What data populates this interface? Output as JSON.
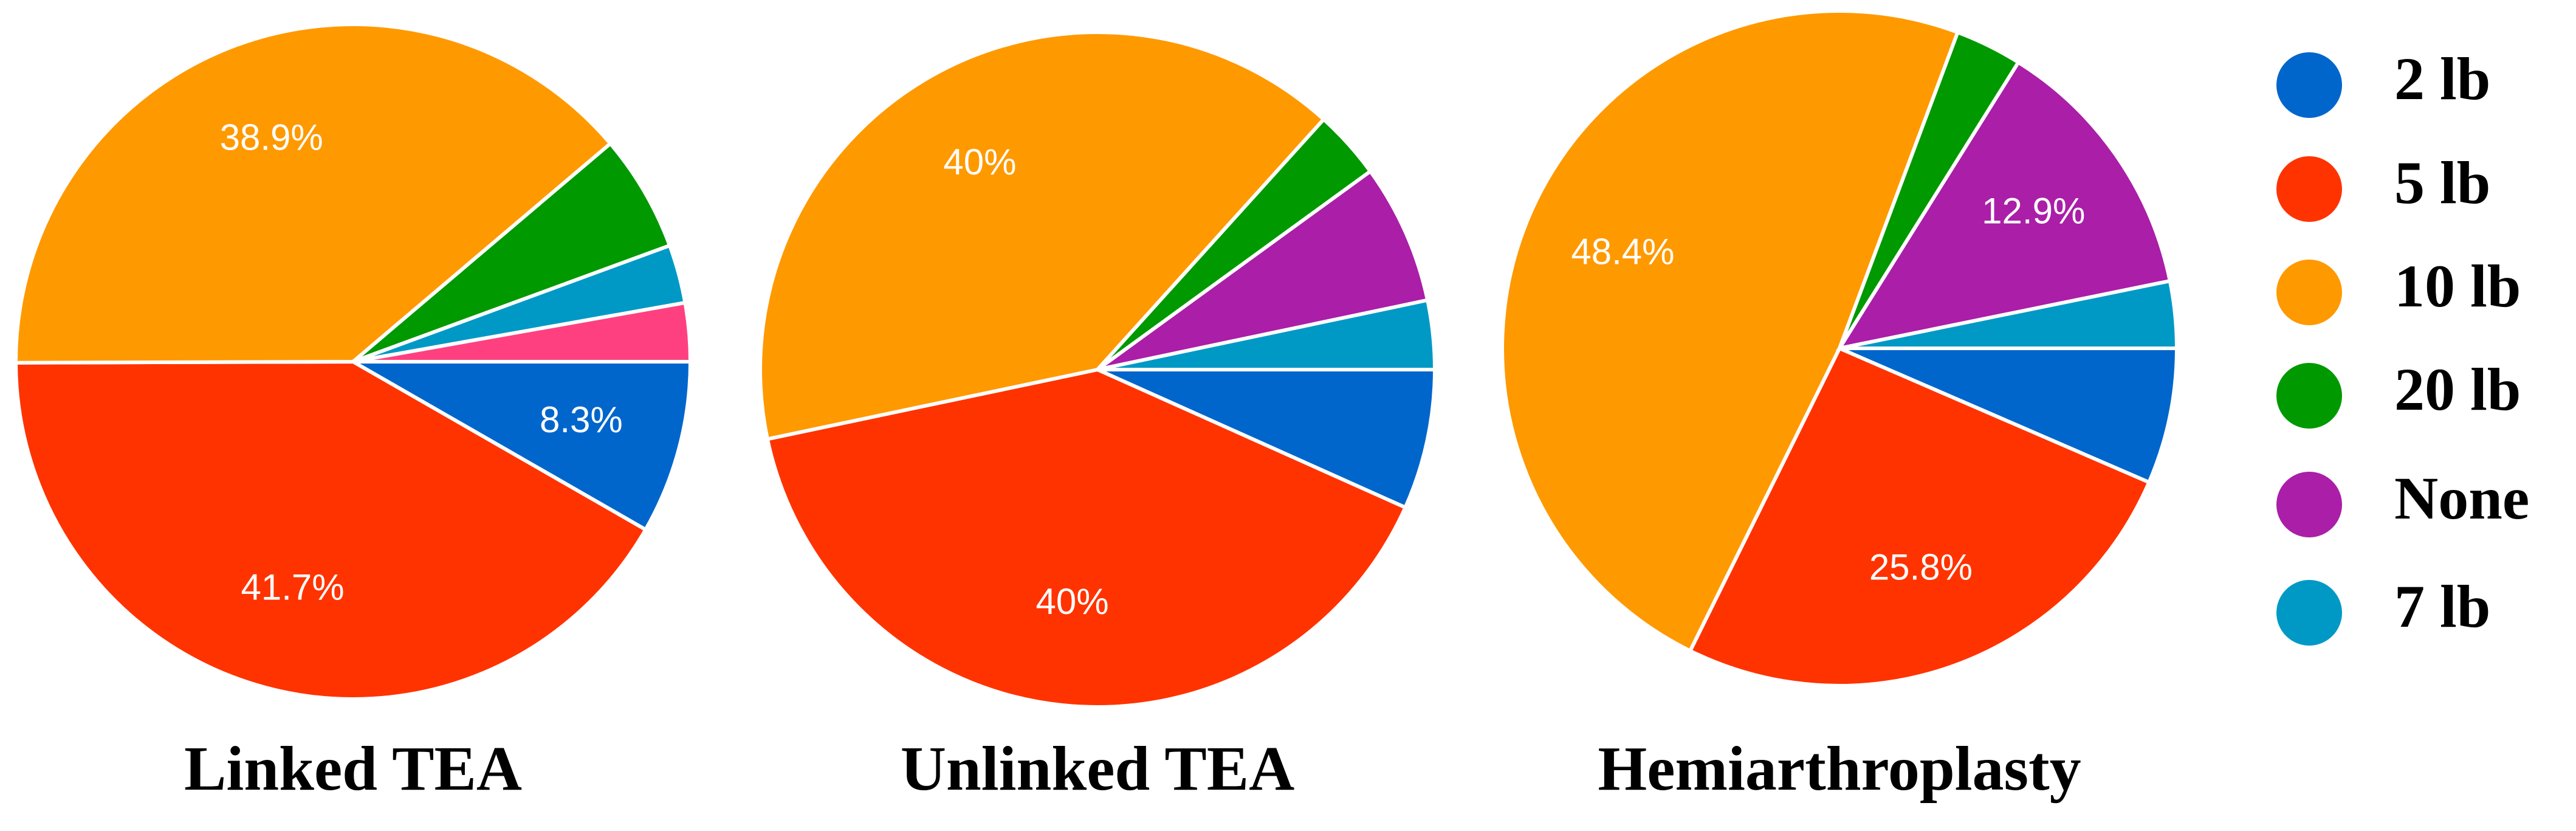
{
  "chart_data": [
    {
      "type": "pie",
      "title": "Linked TEA",
      "categories": [
        "2 lb",
        "5 lb",
        "10 lb",
        "20 lb",
        "7 lb",
        null
      ],
      "values": [
        8.3,
        41.7,
        38.9,
        5.6,
        2.8,
        2.8
      ],
      "value_labels": [
        "8.3%",
        "41.7%",
        "38.9%",
        null,
        null,
        null
      ],
      "colors": [
        "#0066cc",
        "#ff3300",
        "#ff9900",
        "#009900",
        "#0099c6",
        "#ff4080"
      ]
    },
    {
      "type": "pie",
      "title": "Unlinked TEA",
      "categories": [
        "2 lb",
        "5 lb",
        "10 lb",
        "20 lb",
        "None",
        "7 lb"
      ],
      "values": [
        6.7,
        40,
        40,
        3.3,
        6.7,
        3.3
      ],
      "value_labels": [
        null,
        "40%",
        "40%",
        null,
        null,
        null
      ],
      "colors": [
        "#0066cc",
        "#ff3300",
        "#ff9900",
        "#009900",
        "#aa1ea8",
        "#0099c6"
      ]
    },
    {
      "type": "pie",
      "title": "Hemiarthroplasty",
      "categories": [
        "2 lb",
        "5 lb",
        "10 lb",
        "20 lb",
        "None",
        "7 lb"
      ],
      "values": [
        6.5,
        25.8,
        48.4,
        3.2,
        12.9,
        3.2
      ],
      "value_labels": [
        null,
        "25.8%",
        "48.4%",
        null,
        "12.9%",
        null
      ],
      "colors": [
        "#0066cc",
        "#ff3300",
        "#ff9900",
        "#009900",
        "#aa1ea8",
        "#0099c6"
      ]
    }
  ]
}
